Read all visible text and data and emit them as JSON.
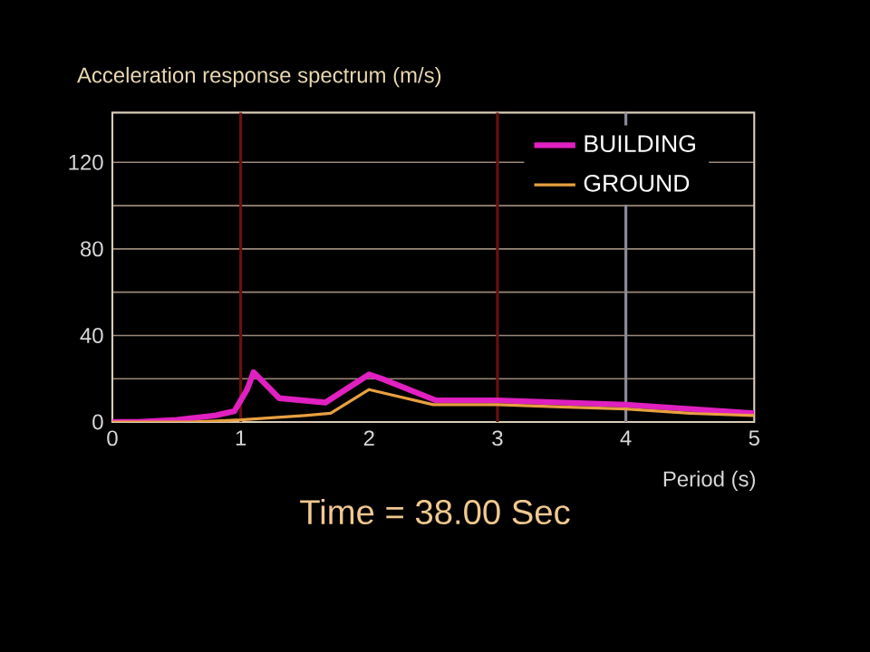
{
  "chart_data": {
    "type": "line",
    "title": "Acceleration response spectrum    (m/s)",
    "xlabel": "Period  (s)",
    "annotations": [
      "Time = 38.00 Sec"
    ],
    "xlim": [
      0,
      5
    ],
    "xticks": [
      0,
      1,
      2,
      3,
      4,
      5
    ],
    "ylim": [
      0,
      143
    ],
    "yticks": [
      0,
      {
        "value": 20,
        "label": null
      },
      40,
      {
        "value": 60,
        "label": null
      },
      80,
      {
        "value": 100,
        "label": null
      },
      120
    ],
    "grid": "y",
    "legend": "top right",
    "marker": "none",
    "line_style": "solid",
    "ref_lines": [
      {
        "axis": "x",
        "value": 1,
        "color": "#6a1010"
      },
      {
        "axis": "x",
        "value": 3,
        "color": "#6a1010"
      },
      {
        "axis": "x",
        "value": 4,
        "color": "#8a8a98"
      }
    ],
    "series": [
      {
        "name": "BUILDING",
        "color": "#e020c0",
        "x": [
          0,
          0.2,
          0.5,
          0.8,
          0.95,
          1.05,
          1.1,
          1.3,
          1.66,
          2.0,
          2.1,
          2.52,
          3.0,
          3.5,
          4.0,
          4.5,
          5.0
        ],
        "values": [
          0,
          0,
          1,
          3,
          5,
          15,
          23,
          11,
          9,
          22,
          20,
          10,
          10,
          9,
          8,
          6,
          4
        ]
      },
      {
        "name": "GROUND",
        "color": "#e8a040",
        "x": [
          0,
          0.6,
          1.0,
          1.5,
          1.7,
          2.0,
          2.5,
          3.0,
          3.5,
          4.0,
          4.5,
          5.0
        ],
        "values": [
          0,
          0,
          1,
          3,
          4,
          15,
          8,
          8,
          7,
          6,
          4,
          3
        ]
      }
    ]
  }
}
